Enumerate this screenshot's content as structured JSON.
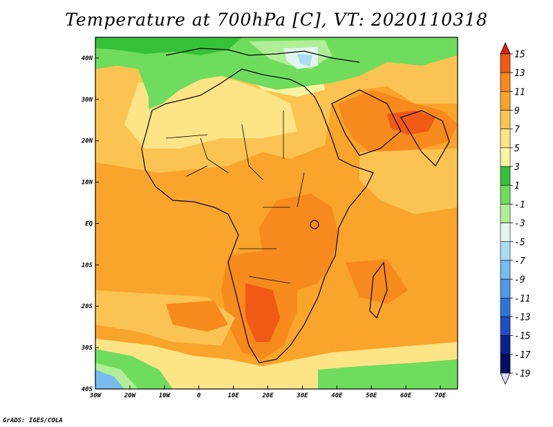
{
  "title": "Temperature at 700hPa [C], VT: 2020110318",
  "credit": "GrADS: IGES/COLA",
  "map": {
    "lat_labels": [
      "40N",
      "30N",
      "20N",
      "10N",
      "EQ",
      "10S",
      "20S",
      "30S",
      "40S"
    ],
    "lon_labels": [
      "30W",
      "20W",
      "10W",
      "0",
      "10E",
      "20E",
      "30E",
      "40E",
      "50E",
      "60E",
      "70E"
    ],
    "lon_range": [
      -30,
      75
    ],
    "lat_range": [
      -40,
      45
    ]
  },
  "legend": {
    "labels": [
      "15",
      "13",
      "11",
      "9",
      "7",
      "5",
      "3",
      "1",
      "-1",
      "-3",
      "-5",
      "-7",
      "-9",
      "-11",
      "-13",
      "-15",
      "-17",
      "-19"
    ],
    "colors": [
      "#e01e0e",
      "#f05a14",
      "#f78a1c",
      "#f9a42b",
      "#fbc452",
      "#fde487",
      "#f8f4a0",
      "#35c138",
      "#6fdc5e",
      "#b0ef98",
      "#dff7ec",
      "#a9dcf1",
      "#77bbef",
      "#4f99e8",
      "#2d74d8",
      "#1f4fc4",
      "#0b2190",
      "#000e63",
      "#ddd9ff"
    ]
  },
  "colors": {
    "frame": "#000000",
    "ocean_base": "#fbbf4c",
    "warm": "#f7a32a",
    "hot": "#f0781c",
    "cool": "#fde487",
    "green": "#6fdc5e",
    "dark_green": "#35c138",
    "ice": "#dff7ec",
    "blue": "#77bbef"
  }
}
